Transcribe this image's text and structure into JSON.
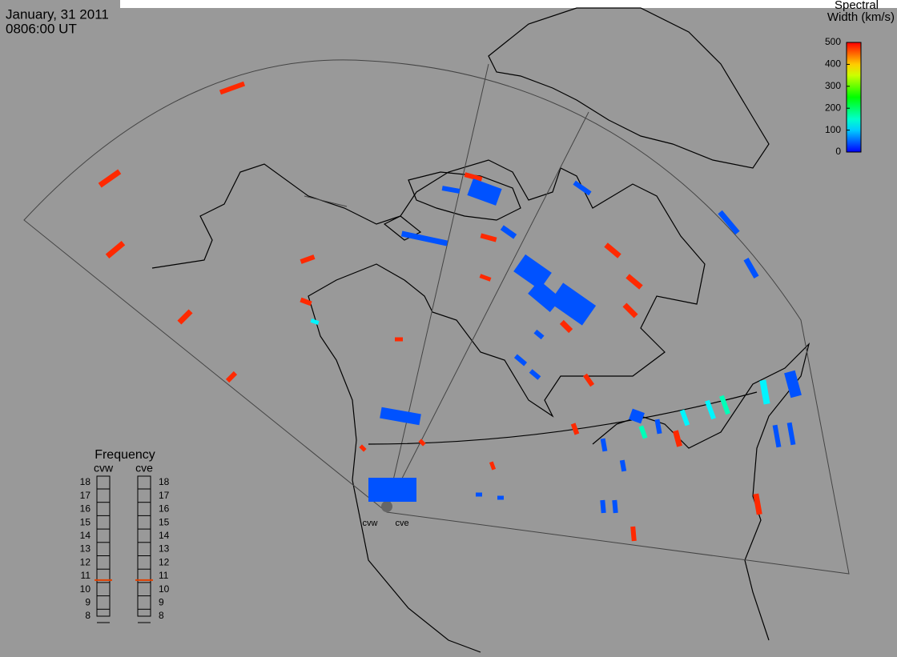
{
  "header": {
    "date": "January, 31 2011",
    "time": "0806:00 UT"
  },
  "colorbar": {
    "title_line1": "Spectral",
    "title_line2": "Width (km/s)",
    "clim": [
      0,
      500
    ],
    "ticks": [
      0,
      100,
      200,
      300,
      400,
      500
    ]
  },
  "frequency": {
    "title": "Frequency",
    "radars": [
      "cvw",
      "cve"
    ],
    "ylim": [
      8,
      18
    ],
    "yticks": [
      8,
      9,
      10,
      11,
      12,
      13,
      14,
      15,
      16,
      17,
      18
    ],
    "values": [
      10.7,
      10.7
    ]
  },
  "sites": [
    "cvw",
    "cve"
  ],
  "echoes": [
    480,
    480,
    480,
    480,
    480,
    480,
    480,
    480,
    480,
    480,
    480,
    480,
    480,
    480,
    480,
    480,
    480,
    480,
    480,
    480,
    480,
    480,
    480,
    40,
    40,
    40,
    40,
    40,
    40,
    40,
    40,
    40,
    40,
    40,
    40,
    40,
    40,
    40,
    40,
    40,
    40,
    40,
    40,
    40,
    40,
    40,
    40,
    40,
    40,
    120,
    120,
    120,
    120,
    160,
    160,
    230,
    230
  ]
}
